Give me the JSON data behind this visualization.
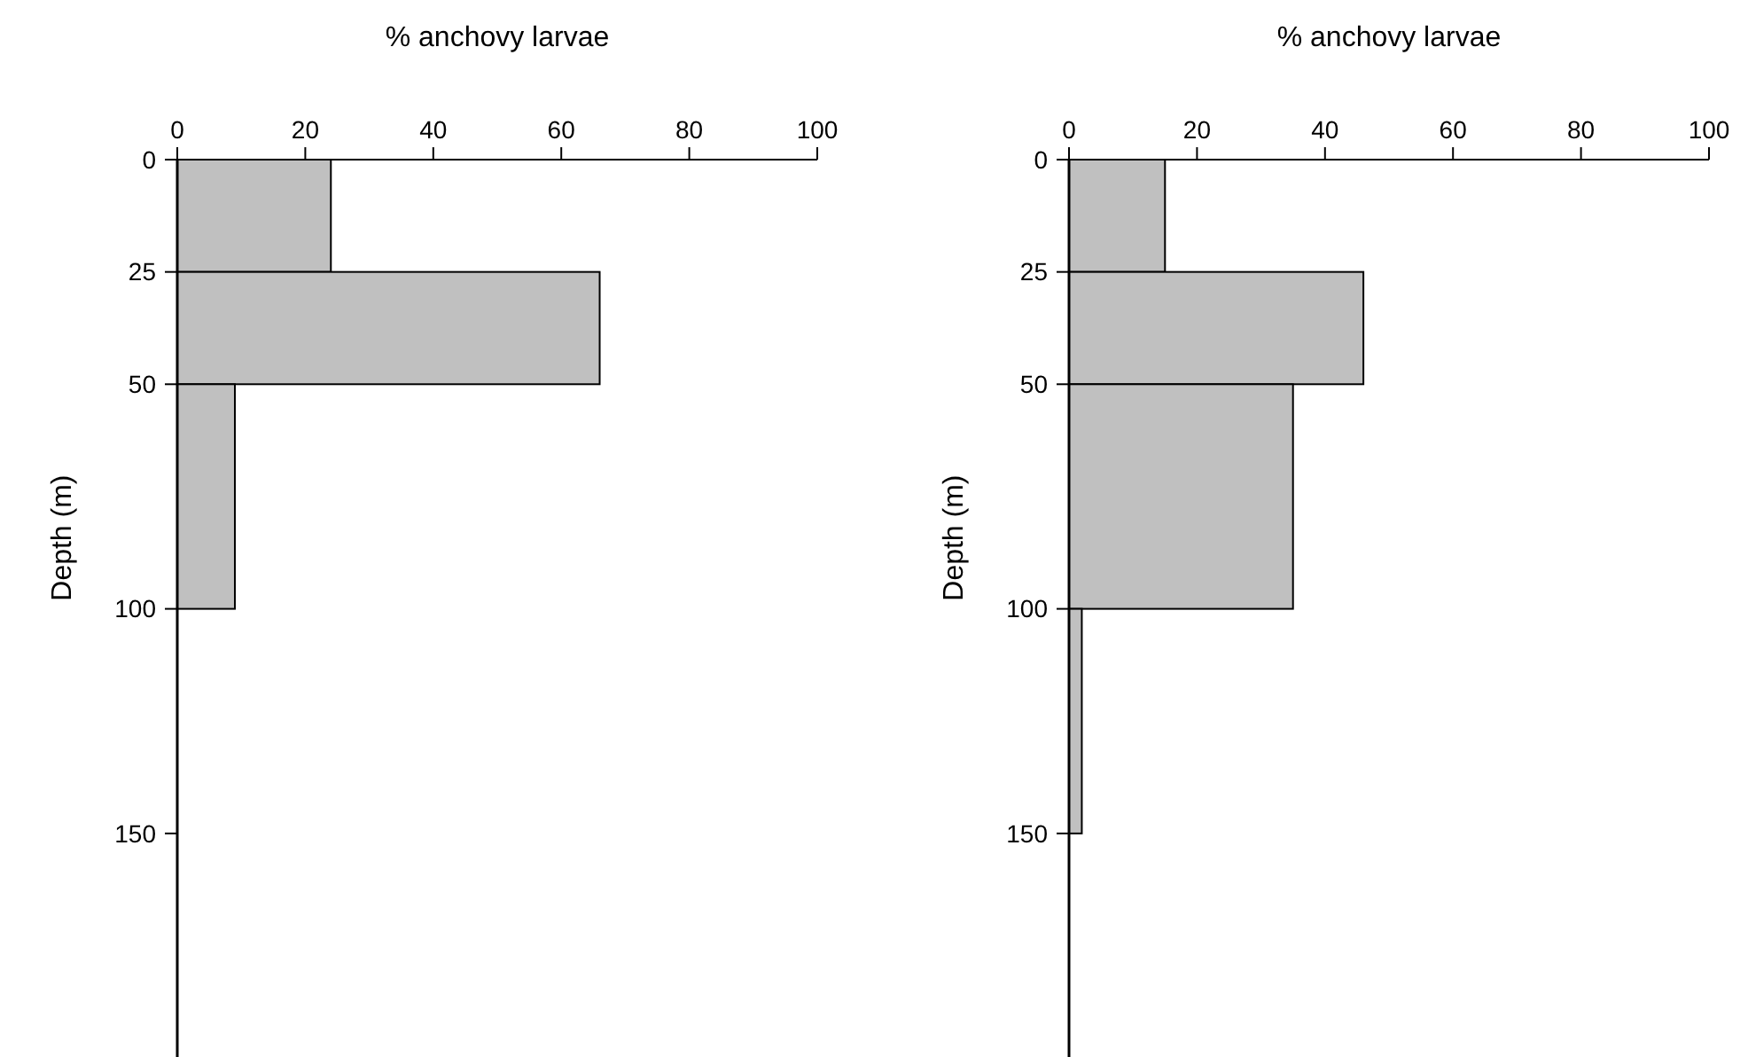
{
  "chart_data": [
    {
      "type": "histogram",
      "orientation": "horizontal",
      "bins": [
        0,
        25,
        50,
        100
      ],
      "values": [
        24,
        66,
        9
      ],
      "color": "#c0c0c0",
      "xlabel": "% anchovy larvae",
      "ylabel": "Depth (m)",
      "xlim": [
        0,
        100
      ],
      "xticks": [
        0,
        20,
        40,
        60,
        80,
        100
      ],
      "ylim": [
        200,
        0
      ],
      "yticks": [
        0,
        25,
        50,
        100,
        150
      ],
      "grid": false
    },
    {
      "type": "histogram",
      "orientation": "horizontal",
      "bins": [
        0,
        25,
        50,
        100,
        150
      ],
      "values": [
        15,
        46,
        35,
        2
      ],
      "color": "#c0c0c0",
      "xlabel": "% anchovy larvae",
      "ylabel": "Depth (m)",
      "xlim": [
        0,
        100
      ],
      "xticks": [
        0,
        20,
        40,
        60,
        80,
        100
      ],
      "ylim": [
        200,
        0
      ],
      "yticks": [
        0,
        25,
        50,
        100,
        150
      ],
      "grid": false
    }
  ]
}
